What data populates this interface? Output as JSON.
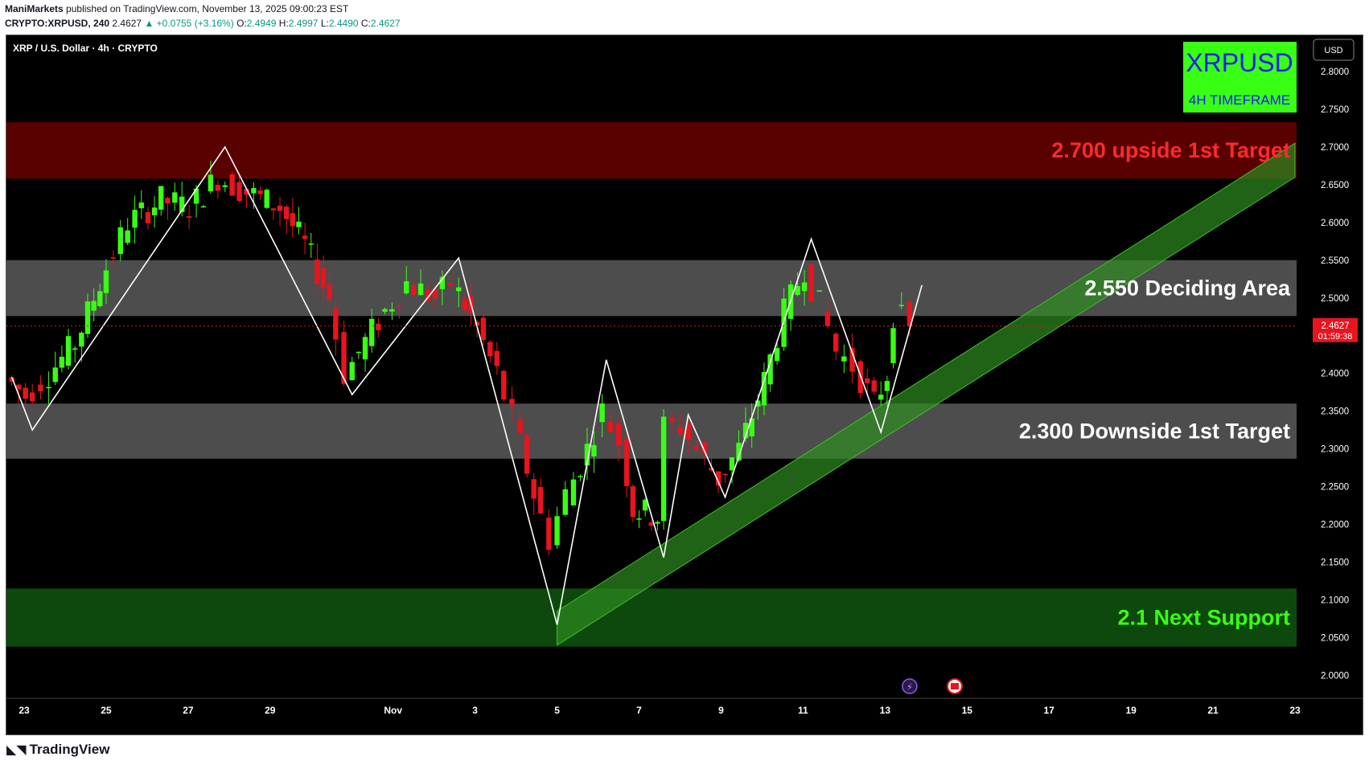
{
  "header": {
    "author": "ManiMarkets",
    "published": "published on TradingView.com, November 13, 2025 09:00:23 EST",
    "symbol": "CRYPTO:XRPUSD, 240",
    "last": "2.4627",
    "change": "▲ +0.0755 (+3.16%)",
    "o_label": "O:",
    "o": "2.4949",
    "h_label": "H:",
    "h": "2.4997",
    "l_label": "L:",
    "l": "2.4490",
    "c_label": "C:",
    "c": "2.4627"
  },
  "footer": {
    "brand": "TradingView",
    "logo_icon": "tradingview-logo-icon"
  },
  "colors": {
    "bg": "#000000",
    "up": "#39ff14",
    "down": "#e8141e",
    "resistance": "#5e0000",
    "gray_zone": "#dcdcdc",
    "support": "#0e4d0e",
    "channel": "#2e8b1f",
    "price_badge": "#e8141e"
  },
  "chart_data": {
    "type": "candlestick",
    "title": "XRP / U.S. Dollar · 4h · CRYPTO",
    "badge": {
      "title": "XRPUSD",
      "subtitle": "4H TIMEFRAME"
    },
    "currency": "USD",
    "y_ticks": [
      "2.8000",
      "2.7500",
      "2.7000",
      "2.6500",
      "2.6000",
      "2.5500",
      "2.5000",
      "2.4500",
      "2.4000",
      "2.3500",
      "2.3000",
      "2.2500",
      "2.2000",
      "2.1500",
      "2.1000",
      "2.0500",
      "2.0000"
    ],
    "ylim": [
      1.97,
      2.85
    ],
    "x_ticks": [
      {
        "label": "23",
        "t": 0
      },
      {
        "label": "25",
        "t": 2
      },
      {
        "label": "27",
        "t": 4
      },
      {
        "label": "29",
        "t": 6
      },
      {
        "label": "Nov",
        "t": 9
      },
      {
        "label": "3",
        "t": 11
      },
      {
        "label": "5",
        "t": 13
      },
      {
        "label": "7",
        "t": 15
      },
      {
        "label": "9",
        "t": 17
      },
      {
        "label": "11",
        "t": 19
      },
      {
        "label": "13",
        "t": 21
      },
      {
        "label": "15",
        "t": 23
      },
      {
        "label": "17",
        "t": 25
      },
      {
        "label": "19",
        "t": 27
      },
      {
        "label": "21",
        "t": 29
      },
      {
        "label": "23",
        "t": 31
      }
    ],
    "xlim": [
      -0.4,
      31.4
    ],
    "current_price": {
      "value": "2.4627",
      "countdown": "01:59:38"
    },
    "zones": [
      {
        "name": "resistance",
        "label": "2.700 upside 1st Target",
        "from": 2.658,
        "to": 2.733,
        "fill": "#5e0000",
        "text_color": "#ff2a2a"
      },
      {
        "name": "deciding",
        "label": "2.550 Deciding Area",
        "from": 2.476,
        "to": 2.55,
        "fill": "#dcdcdc",
        "text_color": "#ffffff"
      },
      {
        "name": "downside",
        "label": "2.300 Downside 1st Target",
        "from": 2.287,
        "to": 2.36,
        "fill": "#dcdcdc",
        "text_color": "#ffffff"
      },
      {
        "name": "support",
        "label": "2.1 Next Support",
        "from": 2.038,
        "to": 2.115,
        "fill": "#0e4d0e",
        "text_color": "#39ff14"
      }
    ],
    "channel": {
      "x": [
        13.0,
        31.0
      ],
      "y_low": [
        2.04,
        2.66
      ],
      "y_high": [
        2.065,
        2.685
      ]
    },
    "zigzag": [
      [
        -0.3,
        2.395
      ],
      [
        0.2,
        2.325
      ],
      [
        4.9,
        2.7
      ],
      [
        8.0,
        2.372
      ],
      [
        10.6,
        2.553
      ],
      [
        13.0,
        2.067
      ],
      [
        14.2,
        2.418
      ],
      [
        15.6,
        2.156
      ],
      [
        16.2,
        2.345
      ],
      [
        17.1,
        2.236
      ],
      [
        19.2,
        2.578
      ],
      [
        20.9,
        2.322
      ],
      [
        21.9,
        2.517
      ]
    ],
    "candle_anchors": [
      [
        -0.3,
        2.395
      ],
      [
        0.2,
        2.37
      ],
      [
        0.6,
        2.39
      ],
      [
        1.4,
        2.44
      ],
      [
        2.0,
        2.52
      ],
      [
        2.7,
        2.6
      ],
      [
        3.5,
        2.63
      ],
      [
        4.2,
        2.62
      ],
      [
        4.9,
        2.66
      ],
      [
        5.6,
        2.64
      ],
      [
        6.4,
        2.62
      ],
      [
        7.0,
        2.57
      ],
      [
        7.6,
        2.5
      ],
      [
        8.0,
        2.4
      ],
      [
        8.8,
        2.47
      ],
      [
        9.5,
        2.52
      ],
      [
        10.2,
        2.5
      ],
      [
        10.6,
        2.52
      ],
      [
        11.2,
        2.46
      ],
      [
        11.7,
        2.4
      ],
      [
        12.1,
        2.34
      ],
      [
        12.6,
        2.24
      ],
      [
        13.0,
        2.18
      ],
      [
        13.4,
        2.24
      ],
      [
        13.9,
        2.3
      ],
      [
        14.3,
        2.35
      ],
      [
        14.7,
        2.31
      ],
      [
        15.0,
        2.22
      ],
      [
        15.6,
        2.21
      ],
      [
        15.8,
        2.33
      ],
      [
        16.2,
        2.33
      ],
      [
        16.6,
        2.3
      ],
      [
        17.1,
        2.26
      ],
      [
        17.6,
        2.3
      ],
      [
        18.2,
        2.39
      ],
      [
        18.7,
        2.48
      ],
      [
        19.2,
        2.54
      ],
      [
        19.6,
        2.49
      ],
      [
        20.0,
        2.43
      ],
      [
        20.4,
        2.41
      ],
      [
        20.9,
        2.36
      ],
      [
        21.2,
        2.4
      ],
      [
        21.4,
        2.48
      ],
      [
        21.8,
        2.4627
      ]
    ]
  }
}
